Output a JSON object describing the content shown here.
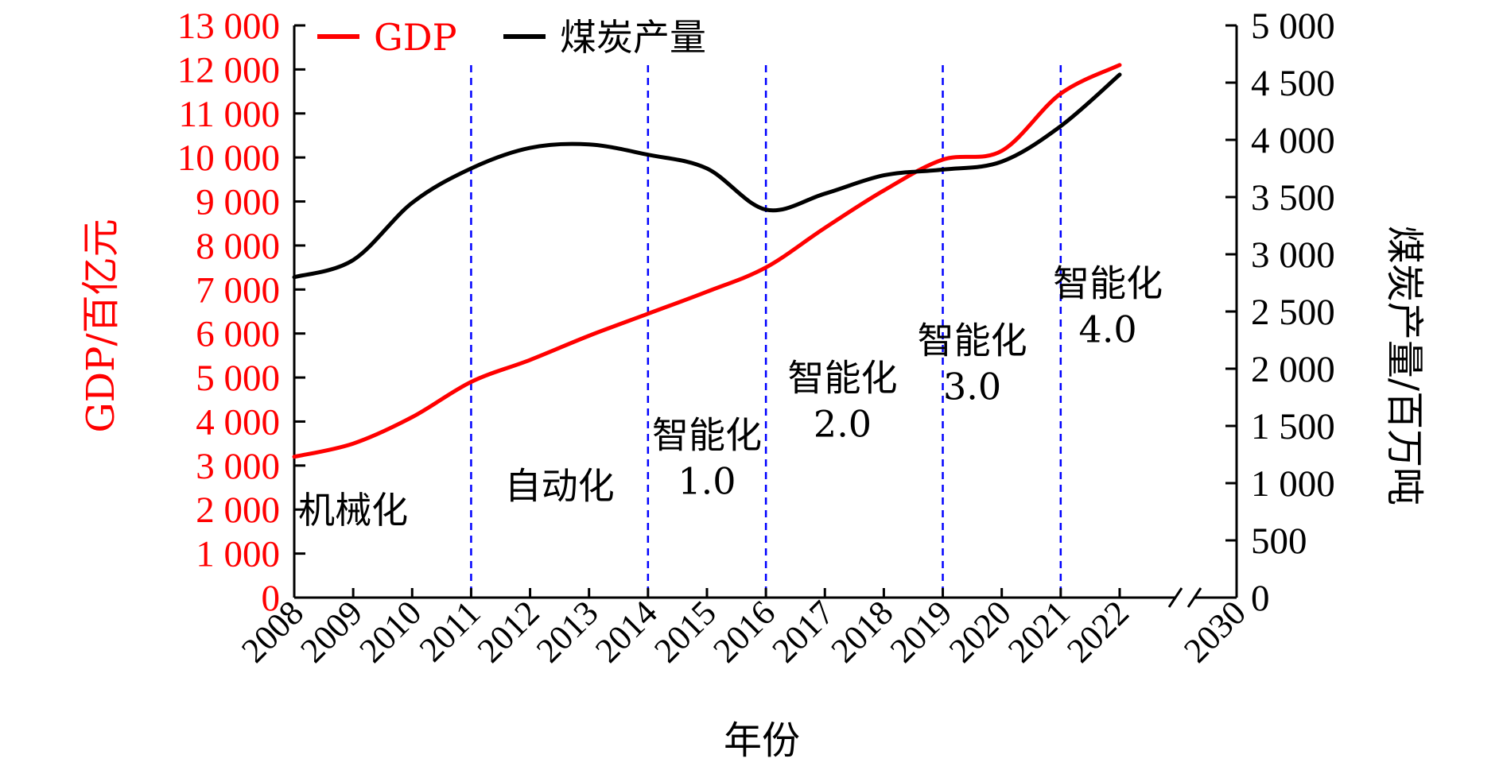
{
  "chart_data": {
    "type": "line",
    "xlabel": "年份",
    "ylabel_left": "GDP/百亿元",
    "ylabel_right": "煤炭产量/百万吨",
    "left_axis": {
      "min": 0,
      "max": 13000,
      "ticks": [
        0,
        1000,
        2000,
        3000,
        4000,
        5000,
        6000,
        7000,
        8000,
        9000,
        10000,
        11000,
        12000,
        13000
      ],
      "tick_labels": [
        "0",
        "1 000",
        "2 000",
        "3 000",
        "4 000",
        "5 000",
        "6 000",
        "7 000",
        "8 000",
        "9 000",
        "10 000",
        "11 000",
        "12 000",
        "13 000"
      ],
      "color": "#ff0000"
    },
    "right_axis": {
      "min": 0,
      "max": 5000,
      "ticks": [
        0,
        500,
        1000,
        1500,
        2000,
        2500,
        3000,
        3500,
        4000,
        4500,
        5000
      ],
      "tick_labels": [
        "0",
        "500",
        "1 000",
        "1 500",
        "2 000",
        "2 500",
        "3 000",
        "3 500",
        "4 000",
        "4 500",
        "5 000"
      ],
      "color": "#000000"
    },
    "x_categories": [
      "2008",
      "2009",
      "2010",
      "2011",
      "2012",
      "2013",
      "2014",
      "2015",
      "2016",
      "2017",
      "2018",
      "2019",
      "2020",
      "2021",
      "2022",
      "2030"
    ],
    "axis_break_between": [
      "2022",
      "2030"
    ],
    "series": [
      {
        "name": "GDP",
        "axis": "left",
        "color": "#ff0000",
        "x": [
          2008,
          2009,
          2010,
          2011,
          2012,
          2013,
          2014,
          2015,
          2016,
          2017,
          2018,
          2019,
          2020,
          2021,
          2022
        ],
        "values": [
          3200,
          3500,
          4100,
          4900,
          5400,
          5950,
          6450,
          6950,
          7500,
          8400,
          9250,
          9950,
          10150,
          11450,
          12100
        ]
      },
      {
        "name": "煤炭产量",
        "axis": "right",
        "color": "#000000",
        "x": [
          2008,
          2009,
          2010,
          2011,
          2012,
          2013,
          2014,
          2015,
          2016,
          2017,
          2018,
          2019,
          2020,
          2021,
          2022
        ],
        "values": [
          2800,
          2950,
          3450,
          3750,
          3930,
          3960,
          3870,
          3750,
          3390,
          3530,
          3690,
          3740,
          3810,
          4120,
          4570
        ]
      }
    ],
    "phase_lines": [
      "2011",
      "2014",
      "2016",
      "2019",
      "2021"
    ],
    "phase_line_color": "#0000ff",
    "annotations": [
      {
        "lines": [
          "机械化"
        ],
        "anchor_x": 2009.0,
        "anchor_y_left": 1700
      },
      {
        "lines": [
          "自动化"
        ],
        "anchor_x": 2012.5,
        "anchor_y_left": 2250
      },
      {
        "lines": [
          "智能化",
          "1.0"
        ],
        "anchor_x": 2015.0,
        "anchor_y_left": 3400
      },
      {
        "lines": [
          "智能化",
          "2.0"
        ],
        "anchor_x": 2017.3,
        "anchor_y_left": 4700
      },
      {
        "lines": [
          "智能化",
          "3.0"
        ],
        "anchor_x": 2019.5,
        "anchor_y_left": 5550
      },
      {
        "lines": [
          "智能化",
          "4.0"
        ],
        "anchor_x": 2021.8,
        "anchor_y_left": 6850
      }
    ],
    "legend": {
      "position": "top-left",
      "items": [
        "GDP",
        "煤炭产量"
      ]
    }
  }
}
